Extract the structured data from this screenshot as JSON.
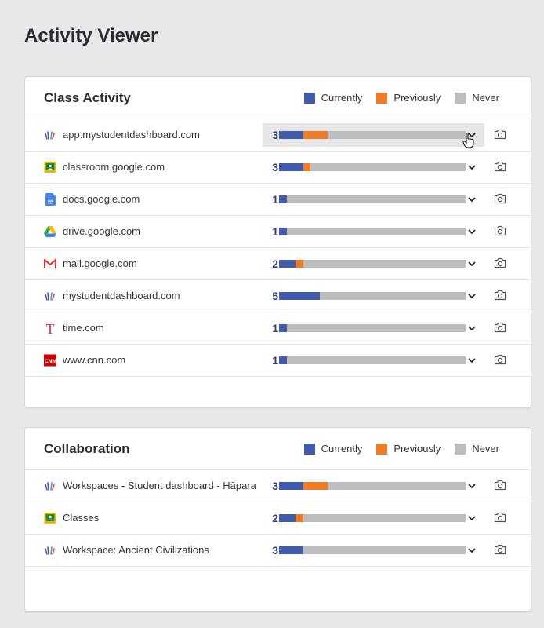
{
  "page": {
    "title": "Activity Viewer"
  },
  "colors": {
    "currently": "#3f5ba9",
    "previously": "#ef7b26",
    "never": "#bdbdbd"
  },
  "legend": {
    "currently": "Currently",
    "previously": "Previously",
    "never": "Never"
  },
  "class_activity": {
    "title": "Class Activity",
    "rows": [
      {
        "label": "app.mystudentdashboard.com",
        "count": "3",
        "icon": "hapara-icon",
        "currently": 0.13,
        "previously": 0.13
      },
      {
        "label": "classroom.google.com",
        "count": "3",
        "icon": "google-classroom-icon",
        "currently": 0.13,
        "previously": 0.04
      },
      {
        "label": "docs.google.com",
        "count": "1",
        "icon": "google-docs-icon",
        "currently": 0.04,
        "previously": 0
      },
      {
        "label": "drive.google.com",
        "count": "1",
        "icon": "google-drive-icon",
        "currently": 0.04,
        "previously": 0
      },
      {
        "label": "mail.google.com",
        "count": "2",
        "icon": "gmail-icon",
        "currently": 0.09,
        "previously": 0.04
      },
      {
        "label": "mystudentdashboard.com",
        "count": "5",
        "icon": "hapara-icon",
        "currently": 0.22,
        "previously": 0
      },
      {
        "label": "time.com",
        "count": "1",
        "icon": "time-icon",
        "currently": 0.04,
        "previously": 0
      },
      {
        "label": "www.cnn.com",
        "count": "1",
        "icon": "cnn-icon",
        "currently": 0.04,
        "previously": 0
      }
    ]
  },
  "collaboration": {
    "title": "Collaboration",
    "rows": [
      {
        "label": "Workspaces - Student dashboard - Hāpara",
        "count": "3",
        "icon": "hapara-icon",
        "currently": 0.13,
        "previously": 0.13
      },
      {
        "label": "Classes",
        "count": "2",
        "icon": "google-classroom-icon",
        "currently": 0.09,
        "previously": 0.04
      },
      {
        "label": "Workspace: Ancient Civilizations",
        "count": "3",
        "icon": "hapara-icon",
        "currently": 0.13,
        "previously": 0
      }
    ]
  }
}
